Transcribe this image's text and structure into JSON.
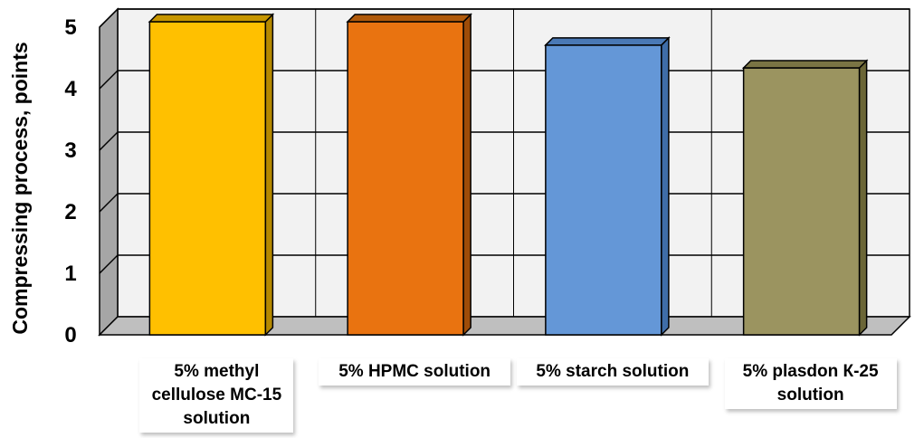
{
  "chart_data": {
    "type": "bar",
    "ylabel": "Compressing  process, points",
    "ylim": [
      0,
      5
    ],
    "yticks": [
      "0",
      "1",
      "2",
      "3",
      "4",
      "5"
    ],
    "grid": true,
    "categories": [
      "5% methyl cellulose MC-15 solution",
      "5%  HPMC solution",
      "5% starch solution",
      "5% plasdon  К-25 solution"
    ],
    "category_lines": [
      [
        "5% methyl",
        "cellulose MC-15",
        "solution"
      ],
      [
        "5%  HPMC solution"
      ],
      [
        "5% starch solution"
      ],
      [
        "5% plasdon  К-25",
        "solution"
      ]
    ],
    "values": [
      5.0,
      5.0,
      4.62,
      4.25
    ],
    "colors": [
      "#FFC000",
      "#E97310",
      "#6497D7",
      "#9B9460"
    ],
    "side_colors": [
      "#B58900",
      "#9E4C08",
      "#3F6DA8",
      "#6B6637"
    ],
    "top_colors": [
      "#C79600",
      "#B05A0B",
      "#4A79B5",
      "#7A7444"
    ]
  }
}
